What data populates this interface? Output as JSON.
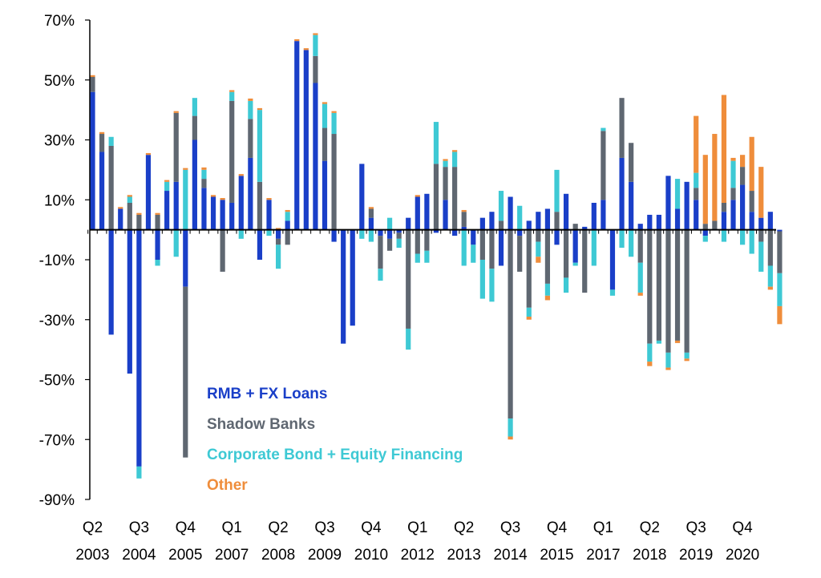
{
  "chart_data": {
    "type": "bar",
    "stacked": true,
    "ylim": [
      -90,
      70
    ],
    "y_ticks": [
      "70%",
      "50%",
      "30%",
      "10%",
      "-10%",
      "-30%",
      "-50%",
      "-70%",
      "-90%"
    ],
    "y_tick_values": [
      70,
      50,
      30,
      10,
      -10,
      -30,
      -50,
      -70,
      -90
    ],
    "x_tick_labels": [
      {
        "quarter": "Q2",
        "year": "2003",
        "index": 0
      },
      {
        "quarter": "Q3",
        "year": "2004",
        "index": 5
      },
      {
        "quarter": "Q4",
        "year": "2005",
        "index": 10
      },
      {
        "quarter": "Q1",
        "year": "2007",
        "index": 15
      },
      {
        "quarter": "Q2",
        "year": "2008",
        "index": 20
      },
      {
        "quarter": "Q3",
        "year": "2009",
        "index": 25
      },
      {
        "quarter": "Q4",
        "year": "2010",
        "index": 30
      },
      {
        "quarter": "Q1",
        "year": "2012",
        "index": 35
      },
      {
        "quarter": "Q2",
        "year": "2013",
        "index": 40
      },
      {
        "quarter": "Q3",
        "year": "2014",
        "index": 45
      },
      {
        "quarter": "Q4",
        "year": "2015",
        "index": 50
      },
      {
        "quarter": "Q1",
        "year": "2017",
        "index": 55
      },
      {
        "quarter": "Q2",
        "year": "2018",
        "index": 60
      },
      {
        "quarter": "Q3",
        "year": "2019",
        "index": 65
      },
      {
        "quarter": "Q4",
        "year": "2020",
        "index": 70
      }
    ],
    "legend": {
      "placement": "bottom-left-inside"
    },
    "series": [
      {
        "name": "RMB + FX Loans",
        "color": "#1a3fc8",
        "values": [
          46,
          26,
          -35,
          7,
          -48,
          -79,
          25,
          -10,
          13,
          16,
          -19,
          30,
          14,
          11,
          10,
          9,
          18,
          24,
          -10,
          10,
          -3,
          3,
          63,
          60,
          49,
          23,
          -4,
          -38,
          -32,
          22,
          4,
          -2,
          -3,
          -1,
          4,
          11,
          12,
          -1,
          10,
          -2,
          1,
          -5,
          4,
          6,
          -12,
          11,
          -2,
          3,
          6,
          7,
          -5,
          12,
          -11,
          1,
          9,
          10,
          -20,
          24,
          16,
          2,
          5,
          5,
          18,
          7,
          16,
          10,
          -2,
          0,
          6,
          10,
          15,
          6,
          4,
          6,
          -0.5
        ],
        "labels": [
          "46",
          "26",
          "-35",
          "7",
          "-48",
          "-79",
          "25",
          "-10",
          "13",
          "16",
          "-19",
          "30",
          "14",
          "11",
          "10",
          "9",
          "18",
          "24",
          "-10",
          "10",
          "-3",
          "3",
          "63",
          "60",
          "49",
          "23",
          "-4",
          "-38",
          "-32",
          "22",
          "4",
          "-2",
          "-3",
          "-1",
          "4",
          "11",
          "12",
          "-1",
          "10",
          "-2",
          "1",
          "-5",
          "4",
          "6",
          "-12",
          "11",
          "-2",
          "3",
          "6",
          "7",
          "-5",
          "12",
          "-11",
          "1",
          "9",
          "10",
          "-20",
          "24",
          "16",
          "2",
          "5",
          "5",
          "18",
          "7",
          "16",
          "10",
          "-2",
          "0",
          "6",
          "10",
          "15",
          "6",
          "4",
          "6",
          "-0.5"
        ]
      },
      {
        "name": "Shadow Banks",
        "color": "#5f6771",
        "values": [
          5,
          6,
          28,
          0,
          9,
          5,
          0,
          5,
          0,
          23,
          -57,
          8,
          3,
          0,
          -14,
          34,
          0,
          13,
          16,
          0,
          -2,
          -5,
          0,
          0,
          9,
          11,
          32,
          0,
          0,
          0,
          3,
          -11,
          -4,
          -2,
          -33,
          -8,
          -7,
          22,
          11,
          21,
          5,
          0,
          -10,
          -13,
          3,
          -63,
          -12,
          -26,
          -4,
          -18,
          6,
          -16,
          2,
          -21,
          0,
          23,
          0,
          20,
          13,
          -11,
          -38,
          -37,
          -41,
          -37,
          -41,
          4,
          2,
          3,
          3,
          4,
          6,
          7,
          -4,
          -12,
          -14
        ],
        "labels": [
          "5",
          "6",
          "28",
          "0",
          "9",
          "5",
          "0",
          "5",
          "0",
          "23",
          "-57",
          "8",
          "3",
          "0",
          "-14",
          "34",
          "0",
          "13",
          "16",
          "0",
          "-2",
          "-5",
          "0",
          "0",
          "9",
          "11",
          "32",
          "0",
          "0",
          "0",
          "3",
          "-11",
          "-4",
          "-2",
          "-33",
          "-8",
          "-7",
          "22",
          "11",
          "21",
          "5",
          "0",
          "-10",
          "-13",
          "3",
          "-63",
          "-12",
          "-26",
          "-4",
          "-18",
          "6",
          "-16",
          "2",
          "-21",
          "0",
          "23",
          "0",
          "20",
          "13",
          "-11",
          "-38",
          "-37",
          "-41",
          "-37",
          "-41",
          "4",
          "2",
          "3",
          "3",
          "4",
          "6",
          "7",
          "-4",
          "-12",
          "-14"
        ]
      },
      {
        "name": "Corporate Bond + Equity Financing",
        "color": "#3ec9d4",
        "values": [
          0,
          0,
          3,
          0,
          2,
          -4,
          0,
          -2,
          3,
          -9,
          20,
          6,
          3,
          0,
          0,
          3,
          -3,
          6,
          24,
          -2,
          -8,
          3,
          0,
          0,
          7,
          8,
          7,
          0,
          0,
          -3,
          -4,
          -4,
          4,
          -3,
          -7,
          -3,
          -4,
          14,
          2,
          5,
          -12,
          -6,
          -13,
          -11,
          10,
          -6,
          8,
          -3,
          -5,
          -4,
          14,
          -5,
          -1,
          0,
          -12,
          1,
          -2,
          -6,
          -9,
          -10,
          -6,
          -1,
          -5,
          10,
          -2,
          5,
          -2,
          0,
          -4,
          9,
          -5,
          -8,
          -10,
          -7,
          -11
        ],
        "labels": [
          "0",
          "0",
          "3",
          "0",
          "2",
          "-4",
          "0",
          "-2",
          "3",
          "-9",
          "20",
          "6",
          "3",
          "0",
          "0",
          "3",
          "-3",
          "6",
          "24",
          "-2",
          "-8",
          "3",
          "0",
          "0",
          "7",
          "8",
          "7",
          "0",
          "0",
          "-3",
          "-4",
          "-4",
          "4",
          "-3",
          "-7",
          "-3",
          "-4",
          "14",
          "2",
          "5",
          "-12",
          "-6",
          "-13",
          "-11",
          "10",
          "-6",
          "8",
          "-3",
          "-5",
          "-4",
          "14",
          "-5",
          "-1",
          "0",
          "-12",
          "1",
          "-2",
          "-6",
          "-9",
          "-10",
          "-6",
          "-1",
          "-5",
          "10",
          "-2",
          "5",
          "-2",
          "0",
          "-4",
          "9",
          "-5",
          "-8",
          "-10",
          "-7",
          "-11"
        ]
      },
      {
        "name": "Other",
        "color": "#ef8d3b",
        "values": [
          0.6,
          0.6,
          0,
          0.6,
          0.6,
          0.6,
          0.6,
          0.6,
          0.6,
          0.6,
          0.6,
          0,
          0.8,
          0.6,
          0.6,
          0.6,
          0.6,
          0.8,
          0.6,
          0.6,
          0.6,
          0.6,
          0.6,
          0.6,
          0.6,
          0.6,
          0.6,
          0,
          0,
          0,
          0.6,
          0,
          0,
          0,
          0,
          0.6,
          0,
          0,
          0.6,
          0.6,
          0.6,
          0,
          0,
          0,
          0,
          -1,
          0,
          -1,
          -2,
          -1.5,
          0,
          0,
          0,
          0,
          0,
          0,
          0,
          0,
          0,
          -1,
          -1.5,
          0,
          -0.8,
          -0.8,
          -0.8,
          19,
          23,
          29,
          36,
          1,
          4,
          18,
          17,
          -1,
          -6
        ],
        "labels": [
          "0.6",
          "0.6",
          "0",
          "0.6",
          "0.6",
          "0.6",
          "0.6",
          "0.6",
          "0.6",
          "0.6",
          "0.6",
          "0",
          "0.8",
          "0.6",
          "0.6",
          "0.6",
          "0.6",
          "0.8",
          "0.6",
          "0.6",
          "0.6",
          "0.6",
          "0.6",
          "0.6",
          "0.6",
          "0.6",
          "0.6",
          "0",
          "0",
          "0",
          "0.6",
          "0",
          "0",
          "0",
          "0",
          "0.6",
          "0",
          "0",
          "0.6",
          "0.6",
          "0.6",
          "0",
          "0",
          "0",
          "0",
          "-1",
          "0",
          "-1",
          "-2",
          "-1.5",
          "0",
          "0",
          "0",
          "0",
          "0",
          "0",
          "0",
          "0",
          "0",
          "-1",
          "-1.5",
          "0",
          "-0.8",
          "-0.8",
          "-0.8",
          "19",
          "23",
          "29",
          "36",
          "1",
          "4",
          "18",
          "17",
          "-1",
          "-6"
        ]
      }
    ]
  }
}
